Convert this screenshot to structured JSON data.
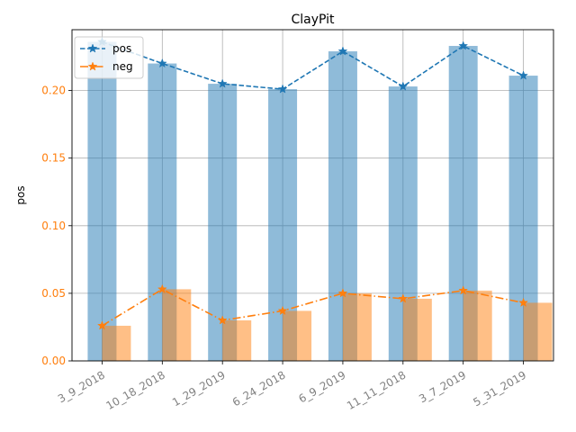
{
  "chart_data": {
    "type": "bar",
    "title": "ClayPit",
    "xlabel": "",
    "ylabel": "pos",
    "categories": [
      "3_9_2018",
      "10_18_2018",
      "1_29_2019",
      "6_24_2018",
      "6_9_2019",
      "11_11_2018",
      "3_7_2019",
      "5_31_2019"
    ],
    "ylim": [
      0,
      0.245
    ],
    "yticks": [
      "0.00",
      "0.05",
      "0.10",
      "0.15",
      "0.20"
    ],
    "grid": true,
    "legend_position": "top-left",
    "series": [
      {
        "name": "pos",
        "kind": "bar+line",
        "line_style": "dashed",
        "marker": "star",
        "bar_color": "#1f77b4",
        "line_color": "#1f77b4",
        "values": [
          0.236,
          0.22,
          0.205,
          0.201,
          0.229,
          0.203,
          0.233,
          0.211
        ]
      },
      {
        "name": "neg",
        "kind": "bar+line",
        "line_style": "dashdot",
        "marker": "star",
        "bar_color": "#ff7f0e",
        "line_color": "#ff7f0e",
        "values": [
          0.026,
          0.053,
          0.03,
          0.037,
          0.05,
          0.046,
          0.052,
          0.043
        ]
      }
    ],
    "colors": {
      "ytick": "#ff7f0e",
      "xtick": "#808080",
      "grid": "#b0b0b0"
    }
  }
}
